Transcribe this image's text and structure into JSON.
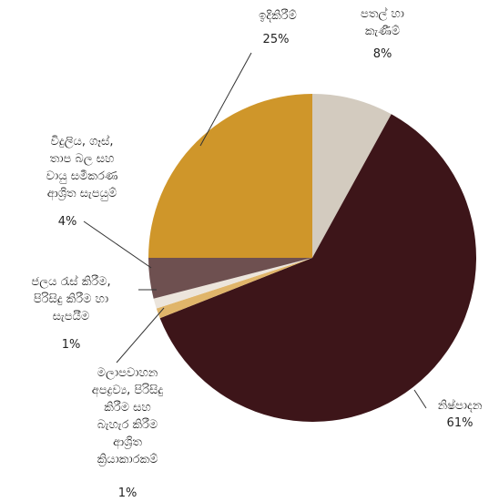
{
  "chart_data": {
    "type": "pie",
    "categories": [
      "පතල් හා\nකැණීම්",
      "නිෂ්පාදන",
      "මලාපවාහන\nඅපද්‍රව්‍ය, පිරිසිදු\nකිරීම සහ\nබැහැර කිරීම\nආශ්‍රිත\nක්‍රියාකාරකම්",
      "ජලය රැස් කිරීම,\nපිරිසිදු කිරීම හා\nසැපයීම",
      "විදුලිය, ගෑස්,\nතාප බල සහ\nවායු සමීකරණ\nආශ්‍රිත සැපයුම්",
      "ඉදිකිරීම්"
    ],
    "values": [
      8,
      61,
      1,
      1,
      4,
      25
    ],
    "value_labels": [
      "8%",
      "61%",
      "1%",
      "1%",
      "4%",
      "25%"
    ],
    "colors": [
      "#d3cbbf",
      "#3d1519",
      "#e0b56a",
      "#ece5dc",
      "#6e5050",
      "#cf962a"
    ]
  }
}
